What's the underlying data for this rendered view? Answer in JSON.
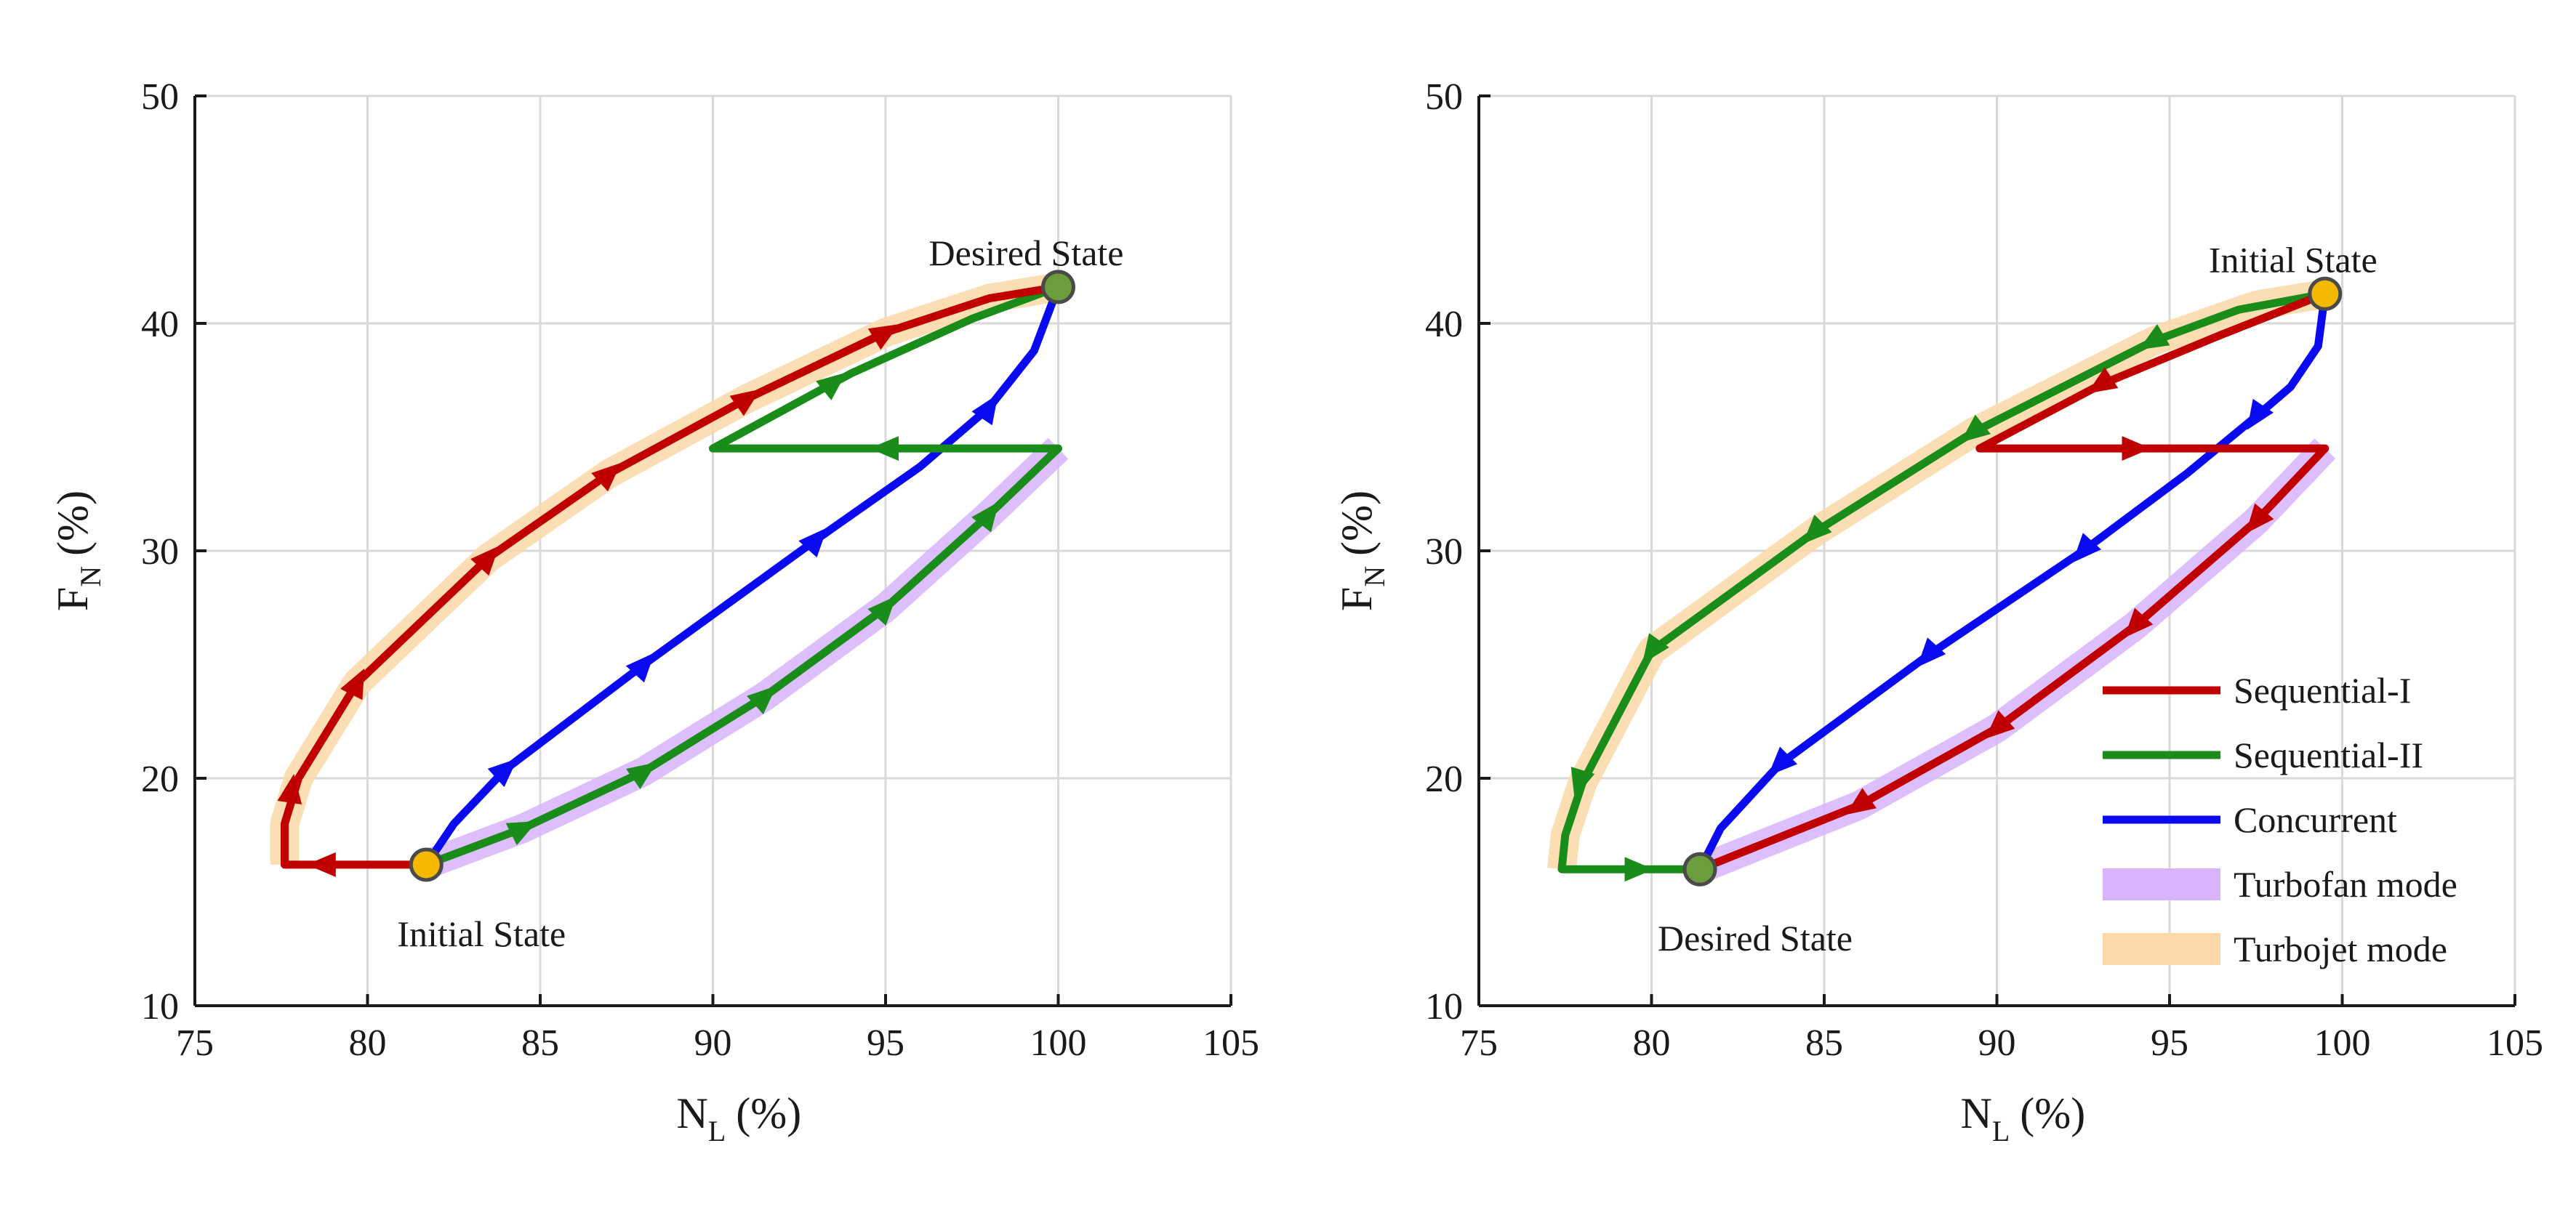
{
  "chart_data": [
    {
      "type": "line",
      "xlabel": "N",
      "xlabel_sub": "L",
      "xlabel_unit": "(%)",
      "ylabel": "F",
      "ylabel_sub": "N",
      "ylabel_unit": "(%)",
      "xlim": [
        75,
        105
      ],
      "ylim": [
        10,
        50
      ],
      "xticks": [
        "75",
        "80",
        "85",
        "90",
        "95",
        "100",
        "105"
      ],
      "yticks": [
        "10",
        "20",
        "30",
        "40",
        "50"
      ],
      "grid": true,
      "annotations": [
        {
          "text": "Desired State",
          "x": 100.0,
          "y": 41.6
        },
        {
          "text": "Initial State",
          "x": 81.7,
          "y": 16.2
        }
      ],
      "markers": [
        {
          "x": 81.7,
          "y": 16.2,
          "color": "#f5b800"
        },
        {
          "x": 100.0,
          "y": 41.6,
          "color": "#6a9e3c"
        }
      ],
      "series": [
        {
          "key": "turbofan",
          "color": "#d8b4fe",
          "x": [
            81.7,
            84.5,
            88.0,
            91.5,
            95.0,
            98.0,
            100.0
          ],
          "y": [
            16.2,
            17.8,
            20.3,
            23.6,
            27.5,
            31.6,
            34.5
          ]
        },
        {
          "key": "turbojet",
          "color": "#fcd8a8",
          "x": [
            77.6,
            77.6,
            78.0,
            79.7,
            83.5,
            87.0,
            91.0,
            95.0,
            98.0,
            100.0
          ],
          "y": [
            16.2,
            18.0,
            20.0,
            24.2,
            29.7,
            33.4,
            36.7,
            39.6,
            41.1,
            41.6
          ]
        },
        {
          "key": "sequential_1",
          "color": "#c00000",
          "x": [
            81.7,
            77.6,
            77.6,
            78.0,
            79.7,
            83.5,
            87.0,
            91.0,
            95.0,
            98.0,
            100.0
          ],
          "y": [
            16.2,
            16.2,
            18.0,
            20.0,
            24.2,
            29.7,
            33.4,
            36.7,
            39.6,
            41.1,
            41.6
          ],
          "arrows": [
            [
              78.7,
              16.2,
              -1,
              0
            ],
            [
              77.8,
              19.5,
              0.15,
              1
            ],
            [
              79.7,
              24.2,
              0.5,
              1
            ],
            [
              83.5,
              29.7,
              1,
              1.1
            ],
            [
              87.0,
              33.4,
              1,
              0.9
            ],
            [
              91.0,
              36.7,
              1,
              0.7
            ],
            [
              95.0,
              39.6,
              1,
              0.6
            ]
          ]
        },
        {
          "key": "sequential_2",
          "color": "#1a8c1a",
          "x": [
            81.7,
            84.5,
            88.0,
            91.5,
            95.0,
            98.0,
            100.0,
            90.0,
            94.0,
            97.5,
            100.0
          ],
          "y": [
            16.2,
            17.8,
            20.3,
            23.6,
            27.5,
            31.6,
            34.5,
            34.5,
            37.8,
            40.2,
            41.6
          ],
          "arrows": [
            [
              84.5,
              17.8,
              1,
              0.5
            ],
            [
              88.0,
              20.3,
              1,
              0.7
            ],
            [
              91.5,
              23.6,
              1,
              0.9
            ],
            [
              95.0,
              27.5,
              1,
              1.1
            ],
            [
              98.0,
              31.6,
              1,
              1.3
            ],
            [
              95.0,
              34.5,
              -1,
              0
            ],
            [
              93.5,
              37.4,
              1,
              0.8
            ]
          ]
        },
        {
          "key": "concurrent",
          "color": "#0a0af0",
          "x": [
            81.7,
            82.5,
            84.0,
            88.0,
            93.0,
            96.0,
            98.0,
            99.3,
            100.0
          ],
          "y": [
            16.2,
            18.0,
            20.4,
            25.0,
            30.5,
            33.7,
            36.3,
            38.8,
            41.6
          ],
          "arrows": [
            [
              84.0,
              20.4,
              1,
              0.9
            ],
            [
              88.0,
              25.0,
              1,
              1.1
            ],
            [
              93.0,
              30.5,
              1,
              1.1
            ],
            [
              98.0,
              36.3,
              1,
              1.5
            ]
          ]
        }
      ]
    },
    {
      "type": "line",
      "xlabel": "N",
      "xlabel_sub": "L",
      "xlabel_unit": "(%)",
      "ylabel": "F",
      "ylabel_sub": "N",
      "ylabel_unit": "(%)",
      "xlim": [
        75,
        105
      ],
      "ylim": [
        10,
        50
      ],
      "xticks": [
        "75",
        "80",
        "85",
        "90",
        "95",
        "100",
        "105"
      ],
      "yticks": [
        "10",
        "20",
        "30",
        "40",
        "50"
      ],
      "grid": true,
      "annotations": [
        {
          "text": "Initial State",
          "x": 99.5,
          "y": 41.3
        },
        {
          "text": "Desired State",
          "x": 81.4,
          "y": 16.0
        }
      ],
      "markers": [
        {
          "x": 81.4,
          "y": 16.0,
          "color": "#6a9e3c"
        },
        {
          "x": 99.5,
          "y": 41.3,
          "color": "#f5b800"
        }
      ],
      "legend": {
        "position": "lower-right",
        "entries": [
          {
            "label": "Sequential-I",
            "color": "#c00000",
            "style": "line"
          },
          {
            "label": "Sequential-II",
            "color": "#1a8c1a",
            "style": "line"
          },
          {
            "label": "Concurrent",
            "color": "#0a0af0",
            "style": "line"
          },
          {
            "label": "Turbofan mode",
            "color": "#d8b4fe",
            "style": "band"
          },
          {
            "label": "Turbojet  mode",
            "color": "#fcd8a8",
            "style": "band"
          }
        ]
      },
      "series": [
        {
          "key": "turbofan",
          "color": "#d8b4fe",
          "x": [
            81.4,
            86.0,
            90.0,
            94.0,
            97.5,
            99.5
          ],
          "y": [
            16.0,
            18.8,
            22.2,
            26.7,
            31.3,
            34.5
          ]
        },
        {
          "key": "turbojet",
          "color": "#fcd8a8",
          "x": [
            77.4,
            77.5,
            78.0,
            80.0,
            84.7,
            89.3,
            94.5,
            97.5,
            99.5
          ],
          "y": [
            16.0,
            17.5,
            19.8,
            25.6,
            30.8,
            35.2,
            39.2,
            40.8,
            41.3
          ]
        },
        {
          "key": "sequential_1",
          "color": "#c00000",
          "x": [
            99.5,
            96.5,
            93.0,
            89.5,
            99.5,
            97.5,
            94.0,
            90.0,
            86.0,
            81.4
          ],
          "y": [
            41.3,
            39.5,
            37.3,
            34.5,
            34.5,
            31.3,
            26.7,
            22.2,
            18.8,
            16.0
          ],
          "arrows": [
            [
              93.0,
              37.3,
              -1,
              -0.65
            ],
            [
              94.0,
              34.5,
              1,
              0
            ],
            [
              97.5,
              31.3,
              -1,
              -1.2
            ],
            [
              94.0,
              26.7,
              -1,
              -1.1
            ],
            [
              90.0,
              22.2,
              -1,
              -0.9
            ],
            [
              86.0,
              18.8,
              -1,
              -0.7
            ]
          ]
        },
        {
          "key": "sequential_2",
          "color": "#1a8c1a",
          "x": [
            99.5,
            97.0,
            94.5,
            89.3,
            84.7,
            80.0,
            78.0,
            77.5,
            77.4,
            81.4
          ],
          "y": [
            41.3,
            40.6,
            39.2,
            35.2,
            30.8,
            25.6,
            19.8,
            17.5,
            16.0,
            16.0
          ],
          "arrows": [
            [
              94.5,
              39.2,
              -1,
              -0.6
            ],
            [
              89.3,
              35.2,
              -1,
              -0.8
            ],
            [
              84.7,
              30.8,
              -1,
              -1.0
            ],
            [
              80.0,
              25.6,
              -1,
              -1.4
            ],
            [
              77.9,
              19.8,
              -0.3,
              -1
            ],
            [
              79.6,
              16.0,
              1,
              0
            ]
          ]
        },
        {
          "key": "concurrent",
          "color": "#0a0af0",
          "x": [
            99.5,
            99.3,
            98.5,
            97.5,
            95.5,
            92.5,
            88.0,
            83.7,
            82.0,
            81.4
          ],
          "y": [
            41.3,
            39.0,
            37.2,
            35.9,
            33.4,
            30.0,
            25.4,
            20.6,
            17.8,
            16.0
          ],
          "arrows": [
            [
              97.5,
              35.9,
              -1,
              -1.5
            ],
            [
              92.5,
              30.0,
              -1,
              -1.1
            ],
            [
              88.0,
              25.4,
              -1,
              -1.1
            ],
            [
              83.7,
              20.6,
              -1,
              -1.0
            ]
          ]
        }
      ]
    }
  ]
}
